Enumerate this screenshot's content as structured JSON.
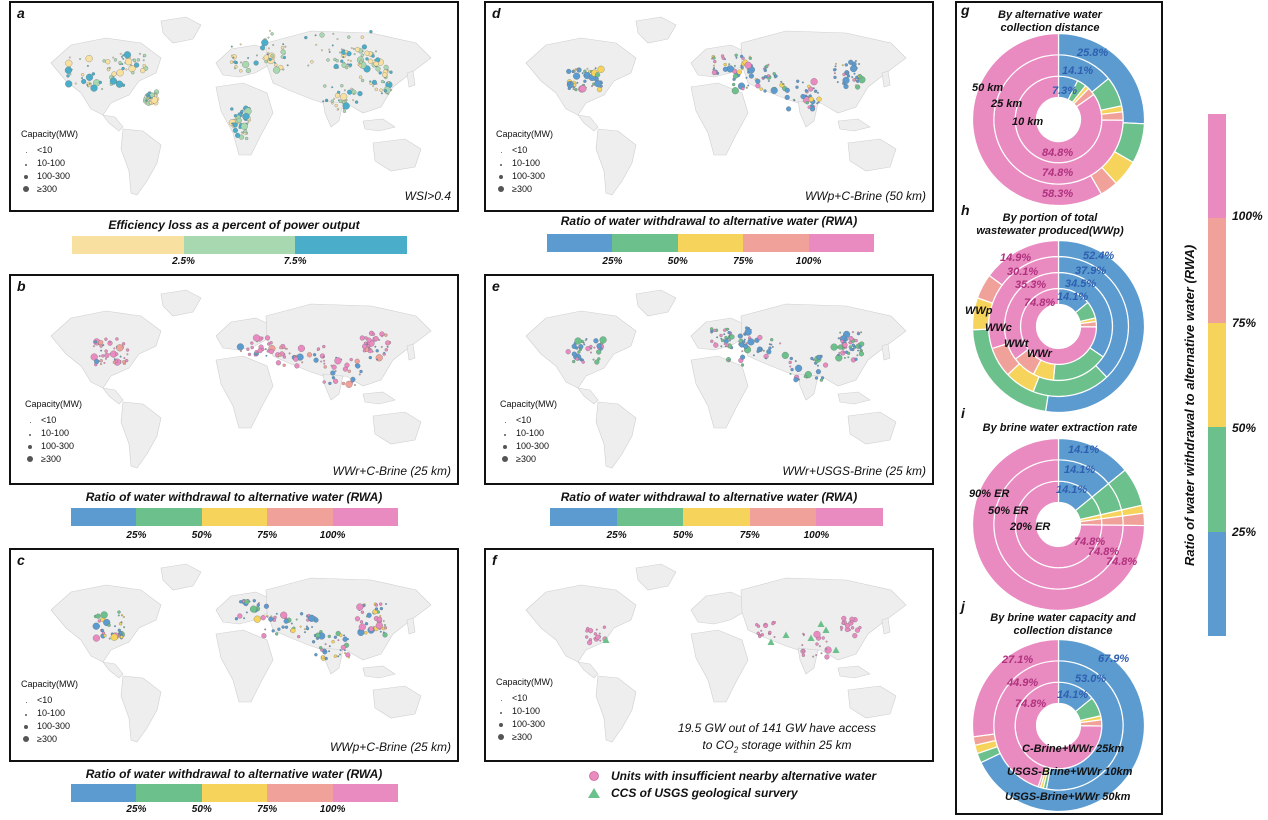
{
  "colors": {
    "yellow_light": "#f7e0a0",
    "green_light": "#a8d8b0",
    "blue_mid": "#4aaecb",
    "blue": "#5b9bd0",
    "green": "#6cc08c",
    "yellow": "#f6d35a",
    "salmon": "#f0a29a",
    "pink": "#e98ac0",
    "pct_blue": "#2f5fb0",
    "pct_pink": "#b0327e",
    "map_land": "#eeeeee",
    "map_stroke": "#cfcfcf"
  },
  "capacity_legend": {
    "title": "Capacity(MW)",
    "items": [
      "<10",
      "10-100",
      "100-300",
      "≥300"
    ]
  },
  "maps": [
    {
      "id": "a",
      "label": "a",
      "caption": "WSI>0.4"
    },
    {
      "id": "b",
      "label": "b",
      "caption": "WWr+C-Brine (25 km)"
    },
    {
      "id": "c",
      "label": "c",
      "caption": "WWp+C-Brine (25 km)"
    },
    {
      "id": "d",
      "label": "d",
      "caption": "WWp+C-Brine (50 km)"
    },
    {
      "id": "e",
      "label": "e",
      "caption": "WWr+USGS-Brine (25 km)"
    },
    {
      "id": "f",
      "label": "f",
      "caption_line1": "19.5 GW out of 141 GW have access",
      "caption_line2_pre": "to CO",
      "caption_line2_sub": "2",
      "caption_line2_post": " storage within 25 km"
    }
  ],
  "colorbars": {
    "efficiency": {
      "title": "Efficiency loss as a percent of power output",
      "ticks": [
        "2.5%",
        "7.5%"
      ]
    },
    "rwa": {
      "title": "Ratio of water withdrawal to alternative water (RWA)",
      "ticks": [
        "25%",
        "50%",
        "75%",
        "100%"
      ]
    }
  },
  "f_legend": {
    "insufficient": "Units with insufficient nearby alternative water",
    "ccs": "CCS of USGS geological survery"
  },
  "vertical_colorbar": {
    "title": "Ratio of water withdrawal to alternative water (RWA)",
    "ticks": [
      "100%",
      "75%",
      "50%",
      "25%"
    ]
  },
  "chart_data": [
    {
      "id": "g",
      "type": "pie",
      "title": "By alternative water collection distance",
      "rings": [
        {
          "name": "10 km",
          "slices": [
            {
              "bin": "<25%",
              "value": 7.3
            },
            {
              "bin": "25-50%",
              "value": 3.5
            },
            {
              "bin": "50-75%",
              "value": 1.5
            },
            {
              "bin": "75-100%",
              "value": 2.9
            },
            {
              "bin": ">=100%",
              "value": 84.8
            }
          ]
        },
        {
          "name": "25 km",
          "slices": [
            {
              "bin": "<25%",
              "value": 14.1
            },
            {
              "bin": "25-50%",
              "value": 7.5
            },
            {
              "bin": "50-75%",
              "value": 1.5
            },
            {
              "bin": "75-100%",
              "value": 2.1
            },
            {
              "bin": ">=100%",
              "value": 74.8
            }
          ]
        },
        {
          "name": "50 km",
          "slices": [
            {
              "bin": "<25%",
              "value": 25.8
            },
            {
              "bin": "25-50%",
              "value": 7.5
            },
            {
              "bin": "50-75%",
              "value": 5.0
            },
            {
              "bin": "75-100%",
              "value": 3.4
            },
            {
              "bin": ">=100%",
              "value": 58.3
            }
          ]
        }
      ],
      "labels_blue": [
        "25.8%",
        "14.1%",
        "7.3%"
      ],
      "labels_pink": [
        "84.8%",
        "74.8%",
        "58.3%"
      ],
      "ring_labels": [
        "50 km",
        "25 km",
        "10 km"
      ]
    },
    {
      "id": "h",
      "type": "pie",
      "title": "By portion of total wastewater produced(WWp)",
      "rings": [
        {
          "name": "WWr",
          "slices": [
            {
              "bin": "<25%",
              "value": 14.1
            },
            {
              "bin": "25-50%",
              "value": 7.3
            },
            {
              "bin": "50-75%",
              "value": 1.5
            },
            {
              "bin": "75-100%",
              "value": 2.3
            },
            {
              "bin": ">=100%",
              "value": 74.8
            }
          ]
        },
        {
          "name": "WWt",
          "slices": [
            {
              "bin": "<25%",
              "value": 34.5
            },
            {
              "bin": "25-50%",
              "value": 17.0
            },
            {
              "bin": "50-75%",
              "value": 6.2
            },
            {
              "bin": "75-100%",
              "value": 7.0
            },
            {
              "bin": ">=100%",
              "value": 35.3
            }
          ]
        },
        {
          "name": "WWc",
          "slices": [
            {
              "bin": "<25%",
              "value": 37.9
            },
            {
              "bin": "25-50%",
              "value": 18.0
            },
            {
              "bin": "50-75%",
              "value": 7.0
            },
            {
              "bin": "75-100%",
              "value": 7.0
            },
            {
              "bin": ">=100%",
              "value": 30.1
            }
          ]
        },
        {
          "name": "WWp",
          "slices": [
            {
              "bin": "<25%",
              "value": 52.4
            },
            {
              "bin": "25-50%",
              "value": 22.0
            },
            {
              "bin": "50-75%",
              "value": 6.0
            },
            {
              "bin": "75-100%",
              "value": 4.7
            },
            {
              "bin": ">=100%",
              "value": 14.9
            }
          ]
        }
      ],
      "labels_blue": [
        "52.4%",
        "37.9%",
        "34.5%",
        "14.1%"
      ],
      "labels_pink": [
        "14.9%",
        "30.1%",
        "35.3%",
        "74.8%"
      ],
      "ring_labels": [
        "WWp",
        "WWc",
        "WWt",
        "WWr"
      ]
    },
    {
      "id": "i",
      "type": "pie",
      "title": "By brine water extraction rate",
      "rings": [
        {
          "name": "20% ER",
          "slices": [
            {
              "bin": "<25%",
              "value": 14.1
            },
            {
              "bin": "25-50%",
              "value": 7.3
            },
            {
              "bin": "50-75%",
              "value": 1.5
            },
            {
              "bin": "75-100%",
              "value": 2.3
            },
            {
              "bin": ">=100%",
              "value": 74.8
            }
          ]
        },
        {
          "name": "50% ER",
          "slices": [
            {
              "bin": "<25%",
              "value": 14.1
            },
            {
              "bin": "25-50%",
              "value": 7.3
            },
            {
              "bin": "50-75%",
              "value": 1.5
            },
            {
              "bin": "75-100%",
              "value": 2.3
            },
            {
              "bin": ">=100%",
              "value": 74.8
            }
          ]
        },
        {
          "name": "90% ER",
          "slices": [
            {
              "bin": "<25%",
              "value": 14.1
            },
            {
              "bin": "25-50%",
              "value": 7.3
            },
            {
              "bin": "50-75%",
              "value": 1.5
            },
            {
              "bin": "75-100%",
              "value": 2.3
            },
            {
              "bin": ">=100%",
              "value": 74.8
            }
          ]
        }
      ],
      "labels_blue": [
        "14.1%",
        "14.1%",
        "14.1%"
      ],
      "labels_pink": [
        "74.8%",
        "74.8%",
        "74.8%"
      ],
      "ring_labels": [
        "90% ER",
        "50% ER",
        "20% ER"
      ]
    },
    {
      "id": "j",
      "type": "pie",
      "title": "By brine water capacity and collection distance",
      "rings": [
        {
          "name": "C-Brine+WWr  25km",
          "slices": [
            {
              "bin": "<25%",
              "value": 14.1
            },
            {
              "bin": "25-50%",
              "value": 7.3
            },
            {
              "bin": "50-75%",
              "value": 1.5
            },
            {
              "bin": "75-100%",
              "value": 2.3
            },
            {
              "bin": ">=100%",
              "value": 74.8
            }
          ]
        },
        {
          "name": "USGS-Brine+WWr  10km",
          "slices": [
            {
              "bin": "<25%",
              "value": 53.0
            },
            {
              "bin": "25-50%",
              "value": 0.8
            },
            {
              "bin": "50-75%",
              "value": 0.7
            },
            {
              "bin": "75-100%",
              "value": 0.6
            },
            {
              "bin": ">=100%",
              "value": 44.9
            }
          ]
        },
        {
          "name": "USGS-Brine+WWr  50km",
          "slices": [
            {
              "bin": "<25%",
              "value": 67.9
            },
            {
              "bin": "25-50%",
              "value": 1.8
            },
            {
              "bin": "50-75%",
              "value": 1.6
            },
            {
              "bin": "75-100%",
              "value": 1.6
            },
            {
              "bin": ">=100%",
              "value": 27.1
            }
          ]
        }
      ],
      "labels_blue": [
        "67.9%",
        "53.0%",
        "14.1%"
      ],
      "labels_pink": [
        "27.1%",
        "44.9%",
        "74.8%"
      ],
      "ring_labels": [
        "C-Brine+WWr  25km",
        "USGS-Brine+WWr  10km",
        "USGS-Brine+WWr  50km"
      ]
    }
  ]
}
